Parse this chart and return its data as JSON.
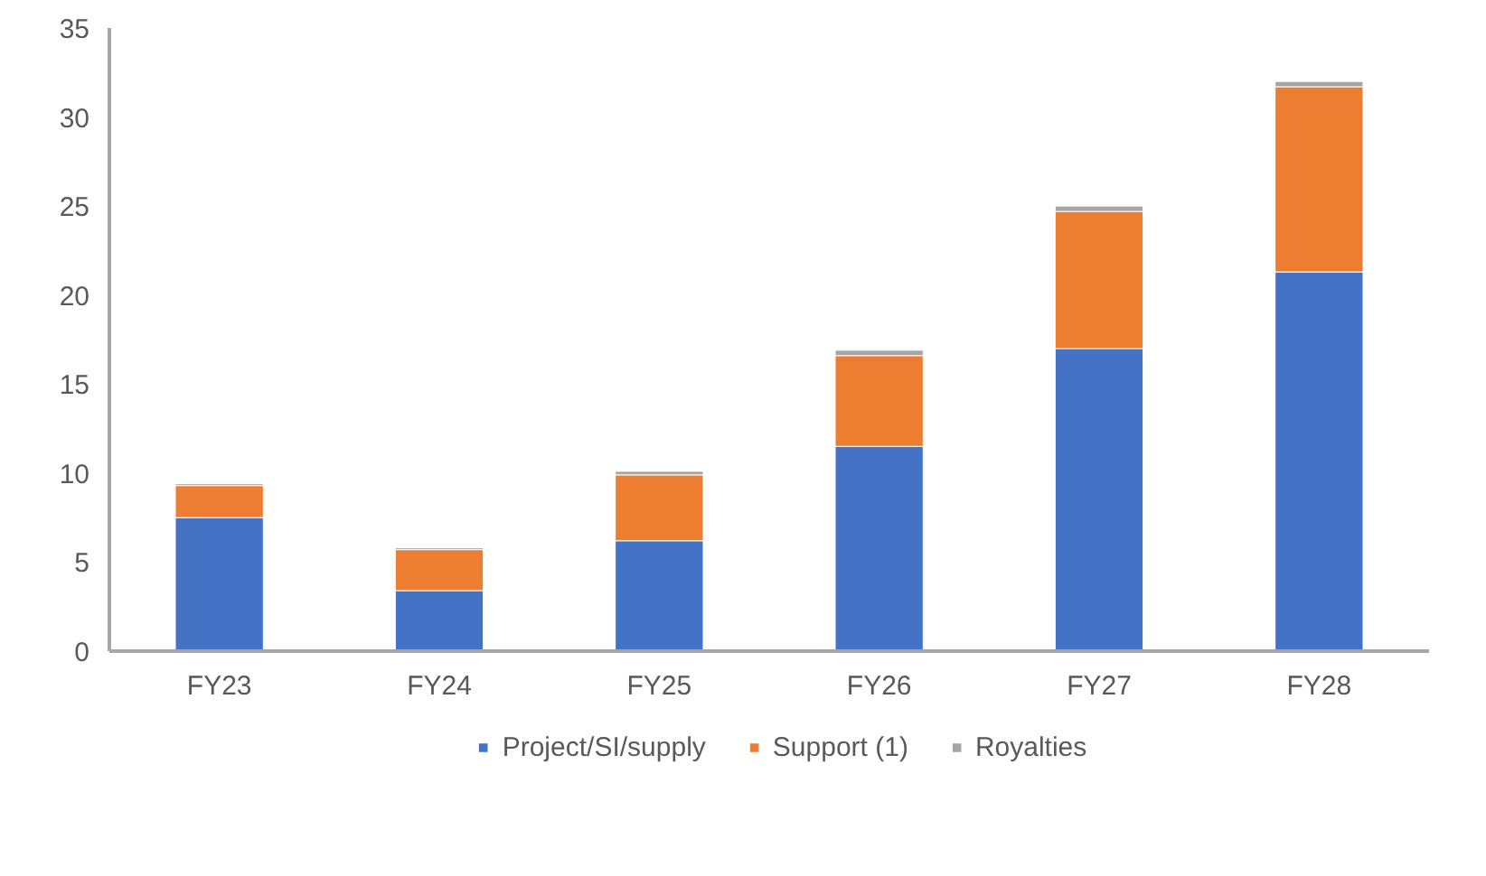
{
  "chart_data": {
    "type": "bar",
    "stacked": true,
    "categories": [
      "FY23",
      "FY24",
      "FY25",
      "FY26",
      "FY27",
      "FY28"
    ],
    "series": [
      {
        "name": "Project/SI/supply",
        "color": "#4472c4",
        "values": [
          7.5,
          3.4,
          6.2,
          11.5,
          17.0,
          21.3
        ]
      },
      {
        "name": "Support (1)",
        "color": "#ed7d31",
        "values": [
          1.8,
          2.3,
          3.7,
          5.1,
          7.7,
          10.4
        ]
      },
      {
        "name": "Royalties",
        "color": "#a5a5a5",
        "values": [
          0.1,
          0.1,
          0.2,
          0.3,
          0.3,
          0.3
        ]
      }
    ],
    "ylim": [
      0,
      35
    ],
    "yticks": [
      0,
      5,
      10,
      15,
      20,
      25,
      30,
      35
    ],
    "grid": false,
    "legend": "bottom"
  }
}
